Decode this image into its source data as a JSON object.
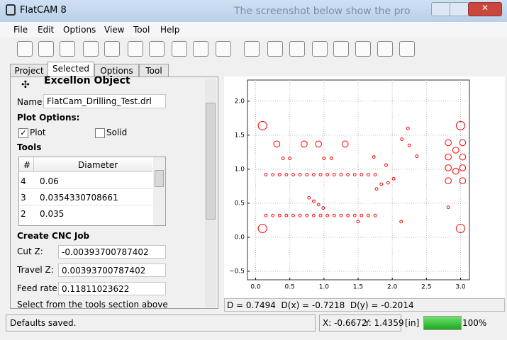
{
  "window": {
    "title": "FlatCAM 8",
    "background_text": "The screenshot below show the pro"
  },
  "menu": [
    "File",
    "Edit",
    "Options",
    "View",
    "Tool",
    "Help"
  ],
  "tabs": {
    "items": [
      "Project",
      "Selected",
      "Options",
      "Tool"
    ],
    "active": 1
  },
  "panel": {
    "heading": "Excellon Object",
    "name_label": "Name:",
    "name_value": "FlatCam_Drilling_Test.drl",
    "plot_options": "Plot Options:",
    "checkboxes": [
      {
        "label": "Plot",
        "checked": true
      },
      {
        "label": "Solid",
        "checked": false
      }
    ],
    "tools_heading": "Tools",
    "tools": {
      "headers": [
        "#",
        "Diameter"
      ],
      "rows": [
        [
          4,
          0.06
        ],
        [
          3,
          0.0354330708661
        ],
        [
          2,
          0.035
        ]
      ]
    },
    "cnc_heading": "Create CNC Job",
    "fields": [
      {
        "label": "Cut Z:",
        "value": -0.00393700787402
      },
      {
        "label": "Travel Z:",
        "value": 0.00393700787402
      },
      {
        "label": "Feed rate:",
        "value": 0.11811023622
      }
    ],
    "hint": "Select from the tools section above"
  },
  "plot": {
    "xlim": [
      -0.12,
      3.13
    ],
    "ylim": [
      -0.625,
      2.31
    ],
    "xticks": [
      {
        "value": 0,
        "label": "0.0"
      },
      {
        "value": 0.5,
        "label": "0.5"
      },
      {
        "value": 1,
        "label": "1.0"
      },
      {
        "value": 1.5,
        "label": "1.5"
      },
      {
        "value": 2,
        "label": "2.0"
      },
      {
        "value": 2.5,
        "label": "2.5"
      },
      {
        "value": 3,
        "label": "3.0"
      }
    ],
    "yticks": [
      {
        "value": -0.5,
        "label": "−0.5"
      },
      {
        "value": 0,
        "label": "0.0"
      },
      {
        "value": 0.5,
        "label": "0.5"
      },
      {
        "value": 1,
        "label": "1.0"
      },
      {
        "value": 1.5,
        "label": "1.5"
      },
      {
        "value": 2,
        "label": "2.0"
      }
    ],
    "grid": true,
    "hole_color": "#ff0000",
    "holes": [
      {
        "d": 0.125,
        "x": [
          0.1,
          0.1,
          3.0,
          3.0
        ],
        "y": [
          1.64,
          0.13,
          1.64,
          0.13
        ]
      },
      {
        "d": 0.09,
        "x": [
          0.31,
          0.71,
          0.92,
          1.31,
          2.82,
          2.93,
          3.03,
          2.82,
          3.03,
          2.82,
          2.93,
          3.03,
          2.82,
          3.03
        ],
        "y": [
          1.37,
          1.37,
          1.37,
          1.37,
          1.39,
          1.28,
          1.39,
          1.18,
          1.18,
          1.02,
          0.97,
          1.02,
          0.83,
          0.83
        ]
      },
      {
        "d": 0.04,
        "x": [
          0.15,
          0.25,
          0.35,
          0.45,
          0.55,
          0.65,
          0.75,
          0.85,
          0.95,
          1.05,
          1.15,
          1.25,
          1.35,
          1.45,
          1.55,
          1.65,
          1.75,
          0.15,
          0.25,
          0.35,
          0.45,
          0.55,
          0.65,
          0.75,
          0.85,
          0.95,
          1.05,
          1.15,
          1.25,
          1.35,
          1.45,
          1.55,
          1.65,
          1.75,
          0.78,
          0.85,
          0.92,
          0.99,
          0.4,
          0.5,
          1.0,
          1.11,
          1.73,
          1.91,
          1.77,
          1.84,
          1.94,
          2.02,
          2.14,
          2.23,
          2.25,
          2.36,
          2.13,
          2.82,
          1.5
        ],
        "y": [
          0.92,
          0.92,
          0.92,
          0.92,
          0.92,
          0.92,
          0.92,
          0.92,
          0.92,
          0.92,
          0.92,
          0.92,
          0.92,
          0.92,
          0.92,
          0.92,
          0.92,
          0.32,
          0.32,
          0.32,
          0.32,
          0.32,
          0.32,
          0.32,
          0.32,
          0.32,
          0.32,
          0.32,
          0.32,
          0.32,
          0.32,
          0.32,
          0.32,
          0.32,
          0.58,
          0.53,
          0.48,
          0.43,
          1.16,
          1.16,
          1.16,
          1.16,
          1.18,
          1.06,
          0.71,
          0.78,
          0.8,
          0.86,
          1.44,
          1.6,
          1.35,
          1.19,
          0.23,
          0.44,
          0.23
        ]
      }
    ],
    "info": "D = 0.7494  D(x) = -0.7218  D(y) = -0.2014"
  },
  "status": {
    "message": "Defaults saved.",
    "x": "X: -0.6672",
    "y": "Y: 1.4359",
    "units": "[in]",
    "progress": {
      "value": 100,
      "label": "100%"
    }
  }
}
